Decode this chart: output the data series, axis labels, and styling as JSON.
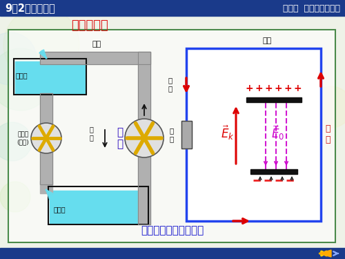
{
  "title_left": "9－2电源电动势",
  "title_right": "第九章  恒定电流的磁场",
  "subtitle": "电源与水泵",
  "bottom_text": "电源和水泵作用的类比",
  "header_bg": "#1a3a8a",
  "header_text_color": "#ffffff",
  "slide_bg": "#eef2e8",
  "border_color": "#4a8a4a",
  "subtitle_color": "#dd1111",
  "bottom_text_color": "#1111cc",
  "footer_bg": "#1a3a8a",
  "water_color": "#66ddee",
  "pipe_color": "#b0b0b0",
  "pipe_dark": "#888888",
  "circuit_color": "#2244ee",
  "arrow_color": "#dd0000",
  "plus_color": "#dd0000",
  "Ek_color": "#dd0000",
  "E0_color": "#cc00cc",
  "pump_label_color": "#2200bb",
  "black": "#111111",
  "white": "#ffffff",
  "plate_color": "#111111",
  "load_color": "#aaaaaa",
  "label_elec_source": "电\n源",
  "label_conductor": "导线",
  "label_current": "电\n流",
  "label_load": "负\n载",
  "label_water_pipe": "水管",
  "label_water_flow": "水\n流",
  "label_pump": "水\n泵",
  "label_turbine": "水轮机\n(负载)",
  "label_high": "地势高",
  "label_low": "地势低"
}
